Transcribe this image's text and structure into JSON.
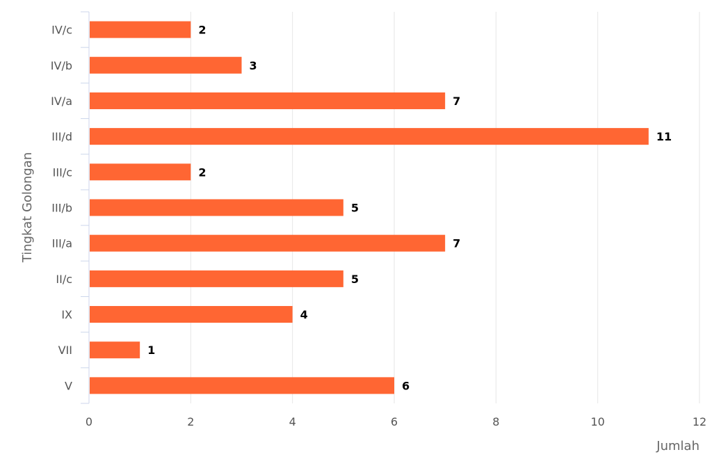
{
  "chart_data": {
    "type": "bar",
    "orientation": "horizontal",
    "categories": [
      "IV/c",
      "IV/b",
      "IV/a",
      "III/d",
      "III/c",
      "III/b",
      "III/a",
      "II/c",
      "IX",
      "VII",
      "V"
    ],
    "values": [
      2,
      3,
      7,
      11,
      2,
      5,
      7,
      5,
      4,
      1,
      6
    ],
    "xlabel": "Jumlah",
    "ylabel": "Tingkat Golongan",
    "xlim": [
      0,
      12
    ],
    "xticks": [
      "0",
      "2",
      "4",
      "6",
      "8",
      "10",
      "12"
    ],
    "grid": true,
    "bar_color": "#ff6633",
    "show_data_labels": true
  }
}
